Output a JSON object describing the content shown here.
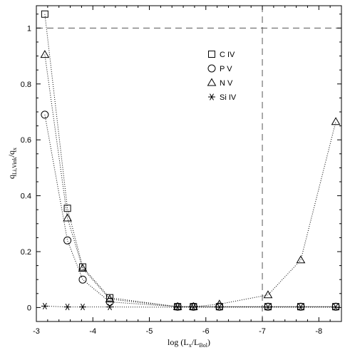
{
  "chart_data": {
    "type": "scatter",
    "title": "",
    "xlabel_parts": [
      "log (L",
      "x",
      "/L",
      "Bol",
      ")"
    ],
    "ylabel_parts": [
      "q",
      "Li,Vink",
      "/q",
      "x"
    ],
    "xlim": [
      -3,
      -8.4
    ],
    "ylim": [
      -0.05,
      1.08
    ],
    "x_ticks": [
      -3,
      -4,
      -5,
      -6,
      -7,
      -8
    ],
    "x_tick_labels": [
      "-3",
      "-4",
      "-5",
      "-6",
      "-7",
      "-8"
    ],
    "y_ticks": [
      0,
      0.2,
      0.4,
      0.6,
      0.8,
      1
    ],
    "y_tick_labels": [
      "0",
      "0.2",
      "0.4",
      "0.6",
      "0.8",
      "1"
    ],
    "reference_lines": {
      "horizontal_y": 1.0,
      "vertical_x": -7.0,
      "style": "dashed"
    },
    "grid": false,
    "legend_position": "top-center",
    "series": [
      {
        "name": "C IV",
        "marker": "square",
        "x": [
          -3.15,
          -3.55,
          -3.82,
          -4.3,
          -5.5,
          -5.78,
          -6.24,
          -7.1,
          -7.68,
          -8.3
        ],
        "y": [
          1.05,
          0.355,
          0.145,
          0.035,
          0.003,
          0.003,
          0.003,
          0.003,
          0.003,
          0.003
        ]
      },
      {
        "name": "P V",
        "marker": "circle",
        "x": [
          -3.15,
          -3.55,
          -3.82,
          -4.3,
          -5.5,
          -5.78,
          -6.24,
          -7.1,
          -7.68,
          -8.3
        ],
        "y": [
          0.69,
          0.24,
          0.1,
          0.02,
          0.003,
          0.003,
          0.003,
          0.003,
          0.003,
          0.003
        ]
      },
      {
        "name": "N V",
        "marker": "triangle",
        "x": [
          -3.15,
          -3.55,
          -3.82,
          -4.3,
          -5.5,
          -5.78,
          -6.24,
          -7.1,
          -7.68,
          -8.3
        ],
        "y": [
          0.905,
          0.32,
          0.14,
          0.03,
          0.003,
          0.003,
          0.012,
          0.045,
          0.17,
          0.665
        ]
      },
      {
        "name": "Si IV",
        "marker": "asterisk",
        "x": [
          -3.15,
          -3.55,
          -3.82,
          -4.3,
          -5.5,
          -5.78,
          -6.24,
          -7.1,
          -7.68,
          -8.3
        ],
        "y": [
          0.005,
          0.002,
          0.002,
          0.002,
          0.001,
          0.001,
          0.001,
          0.001,
          0.001,
          0.001
        ]
      }
    ]
  }
}
